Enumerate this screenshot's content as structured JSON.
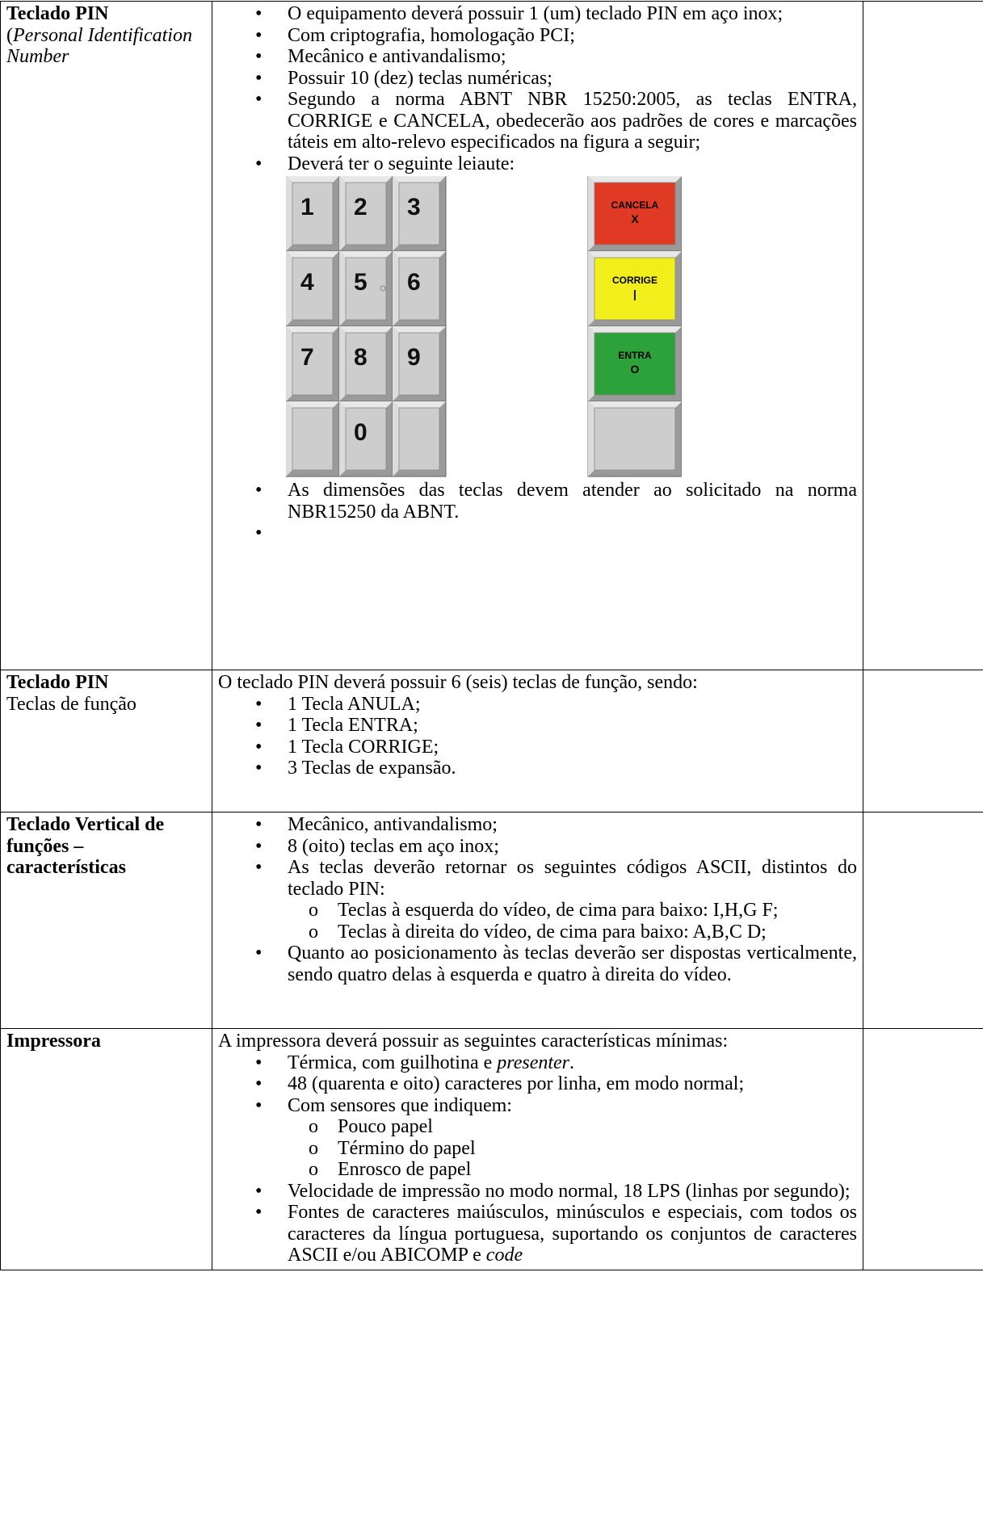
{
  "table": {
    "rows": [
      {
        "label": [
          [
            {
              "text": "Teclado PIN",
              "style": "bold"
            }
          ],
          [
            {
              "text": "(",
              "style": "normal"
            },
            {
              "text": "Personal Identification Number",
              "style": "italic"
            }
          ]
        ],
        "items": [
          {
            "runs": [
              {
                "text": "O equipamento deverá possuir 1 (um) teclado PIN em aço inox;",
                "style": "normal"
              }
            ]
          },
          {
            "runs": [
              {
                "text": "Com criptografia, homologação PCI;",
                "style": "normal"
              }
            ]
          },
          {
            "runs": [
              {
                "text": "Mecânico e antivandalismo;",
                "style": "normal"
              }
            ]
          },
          {
            "runs": [
              {
                "text": "Possuir 10 (dez) teclas numéricas;",
                "style": "normal"
              }
            ]
          },
          {
            "runs": [
              {
                "text": "Segundo a norma ABNT NBR 15250:2005, as teclas ENTRA, CORRIGE e CANCELA, obedecerão aos padrões de cores e marcações táteis em alto-relevo especificados na figura a seguir;",
                "style": "normal"
              }
            ]
          },
          {
            "runs": [
              {
                "text": "Deverá ter o seguinte leiaute:",
                "style": "normal"
              }
            ],
            "keypad": {
              "keys": [
                "1",
                "2",
                "3",
                "4",
                "5",
                "6",
                "7",
                "8",
                "9",
                "0"
              ],
              "function_keys": [
                {
                  "label": "CANCELA",
                  "symbol": "X",
                  "color": "#e03a24"
                },
                {
                  "label": "CORRIGE",
                  "symbol": "|",
                  "color": "#f2ee1c"
                },
                {
                  "label": "ENTRA",
                  "symbol": "O",
                  "color": "#2ea23a"
                }
              ]
            }
          },
          {
            "runs": [
              {
                "text": "As dimensões das teclas devem atender ao solicitado na norma NBR15250 da ABNT.",
                "style": "normal"
              }
            ]
          },
          {
            "runs": []
          }
        ]
      },
      {
        "label": [
          [
            {
              "text": "Teclado PIN",
              "style": "bold"
            }
          ],
          [
            {
              "text": "Teclas de função",
              "style": "normal"
            }
          ]
        ],
        "intro": [
          {
            "text": "O teclado PIN deverá possuir 6 (seis) teclas de função, sendo:",
            "style": "normal"
          }
        ],
        "items": [
          {
            "runs": [
              {
                "text": "1 Tecla ANULA;",
                "style": "normal"
              }
            ]
          },
          {
            "runs": [
              {
                "text": "1 Tecla ENTRA;",
                "style": "normal"
              }
            ]
          },
          {
            "runs": [
              {
                "text": "1 Tecla CORRIGE;",
                "style": "normal"
              }
            ]
          },
          {
            "runs": [
              {
                "text": "3 Teclas de expansão.",
                "style": "normal"
              }
            ]
          }
        ]
      },
      {
        "label": [
          [
            {
              "text": "Teclado Vertical de funções – características",
              "style": "bold"
            }
          ]
        ],
        "items": [
          {
            "runs": [
              {
                "text": "Mecânico, antivandalismo;",
                "style": "normal"
              }
            ]
          },
          {
            "runs": [
              {
                "text": "8 (oito) teclas em aço inox;",
                "style": "normal"
              }
            ]
          },
          {
            "runs": [
              {
                "text": "As teclas deverão retornar os seguintes códigos ASCII, distintos do teclado PIN:",
                "style": "normal"
              }
            ],
            "sub": [
              {
                "runs": [
                  {
                    "text": "Teclas à esquerda do vídeo, de cima para baixo: I,H,G F;",
                    "style": "normal"
                  }
                ]
              },
              {
                "runs": [
                  {
                    "text": "Teclas à direita do vídeo, de cima para baixo: A,B,C D;",
                    "style": "normal"
                  }
                ]
              }
            ]
          },
          {
            "runs": [
              {
                "text": "Quanto ao posicionamento às teclas deverão ser dispostas verticalmente, sendo quatro delas à esquerda e quatro à direita do vídeo.",
                "style": "normal"
              }
            ]
          }
        ]
      },
      {
        "label": [
          [
            {
              "text": "Impressora",
              "style": "bold"
            }
          ]
        ],
        "intro": [
          {
            "text": "A impressora deverá possuir as seguintes características mínimas:",
            "style": "normal"
          }
        ],
        "items": [
          {
            "runs": [
              {
                "text": "Térmica, com guilhotina e ",
                "style": "normal"
              },
              {
                "text": "presenter",
                "style": "italic"
              },
              {
                "text": ".",
                "style": "normal"
              }
            ]
          },
          {
            "runs": [
              {
                "text": "48 (quarenta e oito) caracteres por linha, em modo normal;",
                "style": "normal"
              }
            ]
          },
          {
            "runs": [
              {
                "text": "Com sensores que indiquem:",
                "style": "normal"
              }
            ],
            "sub": [
              {
                "runs": [
                  {
                    "text": "Pouco papel",
                    "style": "normal"
                  }
                ]
              },
              {
                "runs": [
                  {
                    "text": "Término do papel",
                    "style": "normal"
                  }
                ]
              },
              {
                "runs": [
                  {
                    "text": "Enrosco de papel",
                    "style": "normal"
                  }
                ]
              }
            ]
          },
          {
            "runs": [
              {
                "text": "Velocidade de impressão no modo normal, 18 LPS (linhas por segundo);",
                "style": "normal"
              }
            ]
          },
          {
            "runs": [
              {
                "text": "Fontes de caracteres maiúsculos, minúsculos e especiais, com todos os caracteres da língua portuguesa, suportando os conjuntos de caracteres ASCII e/ou ABICOMP e ",
                "style": "normal"
              },
              {
                "text": "code",
                "style": "italic"
              }
            ]
          }
        ]
      }
    ]
  }
}
